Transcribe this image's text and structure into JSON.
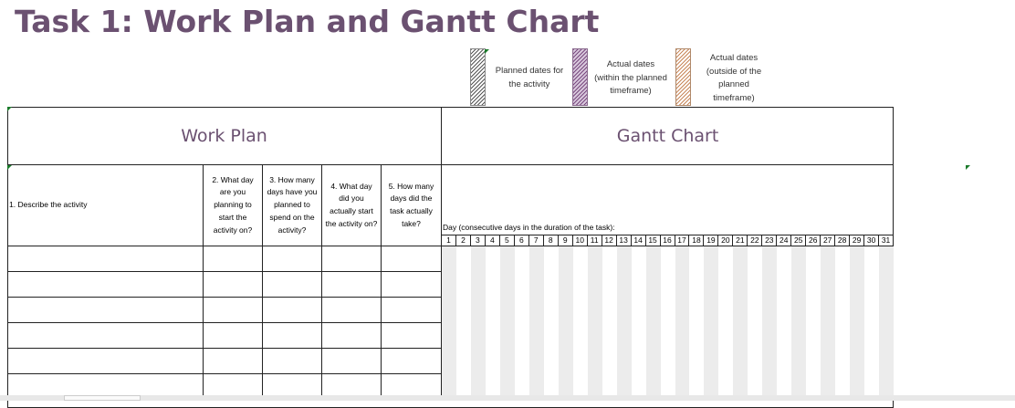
{
  "title": "Task 1: Work Plan and Gantt Chart",
  "legend": [
    {
      "lines": [
        "Planned dates for",
        "the activity"
      ],
      "icon": "hatched-gray"
    },
    {
      "lines": [
        "Actual dates",
        "(within the planned",
        "timeframe)"
      ],
      "icon": "hatched-purple"
    },
    {
      "lines": [
        "Actual dates",
        "(outside of the",
        "planned",
        "timeframe)"
      ],
      "icon": "hatched-orange"
    }
  ],
  "headers": {
    "work_plan": "Work Plan",
    "gantt_chart": "Gantt Chart"
  },
  "columns": [
    {
      "lines": [
        "1. Describe the activity"
      ]
    },
    {
      "lines": [
        "2. What day",
        "are you",
        "planning to",
        "start the",
        "activity on?"
      ]
    },
    {
      "lines": [
        "3. How many",
        "days have you",
        "planned to",
        "spend on the",
        "activity?"
      ]
    },
    {
      "lines": [
        "4. What day",
        "did you",
        "actually start",
        "the activity on?"
      ]
    },
    {
      "lines": [
        "5. How many",
        "days did the",
        "task actually",
        "take?"
      ]
    }
  ],
  "day_caption": "Day (consecutive days in the duration of the task):",
  "days": [
    "1",
    "2",
    "3",
    "4",
    "5",
    "6",
    "7",
    "8",
    "9",
    "10",
    "11",
    "12",
    "13",
    "14",
    "15",
    "16",
    "17",
    "18",
    "19",
    "20",
    "21",
    "22",
    "23",
    "24",
    "25",
    "26",
    "27",
    "28",
    "29",
    "30",
    "31"
  ],
  "rows": [
    [
      "",
      "",
      "",
      "",
      ""
    ],
    [
      "",
      "",
      "",
      "",
      ""
    ],
    [
      "",
      "",
      "",
      "",
      ""
    ],
    [
      "",
      "",
      "",
      "",
      ""
    ],
    [
      "",
      "",
      "",
      "",
      ""
    ],
    [
      "",
      "",
      "",
      "",
      ""
    ]
  ],
  "colors": {
    "title": "#6b5171",
    "grid_shade": "#ececec"
  }
}
